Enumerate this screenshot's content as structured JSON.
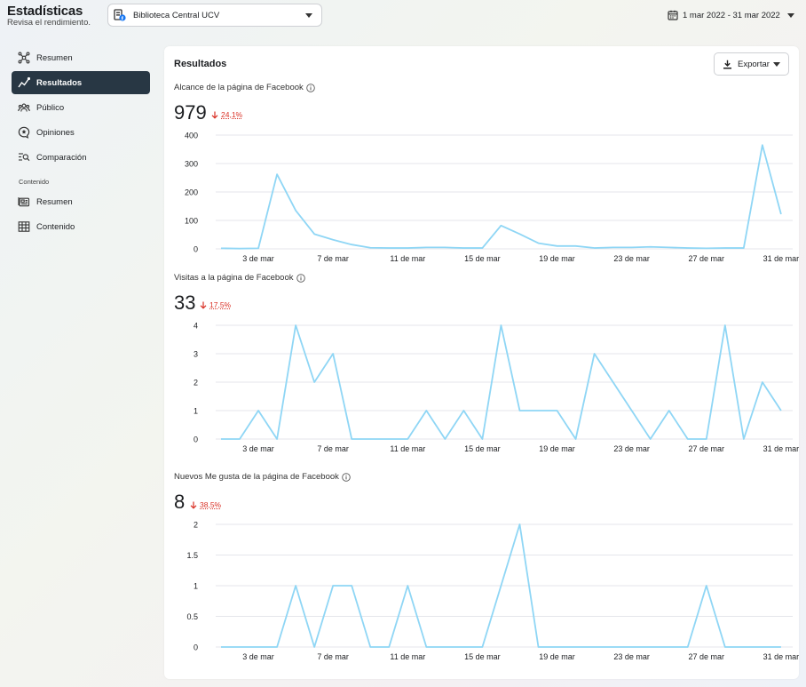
{
  "header": {
    "title": "Estadísticas",
    "subtitle": "Revisa el rendimiento.",
    "page_selector": {
      "value": "Biblioteca Central UCV",
      "icon": "facebook-page-icon"
    },
    "date_range": {
      "value": "1 mar 2022 - 31 mar 2022",
      "icon": "calendar-icon"
    }
  },
  "sidebar": {
    "items": [
      {
        "label": "Resumen",
        "icon": "overview-icon",
        "active": false
      },
      {
        "label": "Resultados",
        "icon": "results-trend-icon",
        "active": true
      },
      {
        "label": "Público",
        "icon": "audience-icon",
        "active": false
      },
      {
        "label": "Opiniones",
        "icon": "reviews-icon",
        "active": false
      },
      {
        "label": "Comparación",
        "icon": "compare-icon",
        "active": false
      }
    ],
    "content_section": {
      "label": "Contenido",
      "items": [
        {
          "label": "Resumen",
          "icon": "content-overview-icon"
        },
        {
          "label": "Contenido",
          "icon": "content-table-icon"
        }
      ]
    }
  },
  "main": {
    "title": "Resultados",
    "export_button": {
      "label": "Exportar",
      "icon": "download-icon"
    },
    "metrics": [
      {
        "title": "Alcance de la página de Facebook",
        "value": "979",
        "change": "24,1%",
        "direction": "down"
      },
      {
        "title": "Visitas a la página de Facebook",
        "value": "33",
        "change": "17,5%",
        "direction": "down"
      },
      {
        "title": "Nuevos Me gusta de la página de Facebook",
        "value": "8",
        "change": "38,5%",
        "direction": "down"
      }
    ]
  },
  "colors": {
    "line": "#8fd6f5",
    "active_nav": "#283744",
    "negative": "#d93025",
    "grid": "#e4e6eb"
  },
  "chart_data": [
    {
      "type": "line",
      "title": "Alcance de la página de Facebook",
      "x": [
        "1 mar",
        "2 mar",
        "3 mar",
        "4 mar",
        "5 mar",
        "6 mar",
        "7 mar",
        "8 mar",
        "9 mar",
        "10 mar",
        "11 mar",
        "12 mar",
        "13 mar",
        "14 mar",
        "15 mar",
        "16 mar",
        "17 mar",
        "18 mar",
        "19 mar",
        "20 mar",
        "21 mar",
        "22 mar",
        "23 mar",
        "24 mar",
        "25 mar",
        "26 mar",
        "27 mar",
        "28 mar",
        "29 mar",
        "30 mar",
        "31 mar"
      ],
      "x_tick_labels": [
        "3 de mar",
        "7 de mar",
        "11 de mar",
        "15 de mar",
        "19 de mar",
        "23 de mar",
        "27 de mar",
        "31 de mar"
      ],
      "series": [
        {
          "values": [
            2,
            1,
            2,
            262,
            135,
            52,
            32,
            15,
            4,
            3,
            3,
            5,
            5,
            3,
            3,
            82,
            52,
            20,
            10,
            10,
            3,
            5,
            5,
            7,
            5,
            3,
            2,
            3,
            3,
            365,
            122
          ]
        }
      ],
      "yticks": [
        "0",
        "100",
        "200",
        "300",
        "400"
      ],
      "ylim": [
        0,
        400
      ]
    },
    {
      "type": "line",
      "title": "Visitas a la página de Facebook",
      "x": [
        "1 mar",
        "2 mar",
        "3 mar",
        "4 mar",
        "5 mar",
        "6 mar",
        "7 mar",
        "8 mar",
        "9 mar",
        "10 mar",
        "11 mar",
        "12 mar",
        "13 mar",
        "14 mar",
        "15 mar",
        "16 mar",
        "17 mar",
        "18 mar",
        "19 mar",
        "20 mar",
        "21 mar",
        "22 mar",
        "23 mar",
        "24 mar",
        "25 mar",
        "26 mar",
        "27 mar",
        "28 mar",
        "29 mar",
        "30 mar",
        "31 mar"
      ],
      "x_tick_labels": [
        "3 de mar",
        "7 de mar",
        "11 de mar",
        "15 de mar",
        "19 de mar",
        "23 de mar",
        "27 de mar",
        "31 de mar"
      ],
      "series": [
        {
          "values": [
            0,
            0,
            1,
            0,
            4,
            2,
            3,
            0,
            0,
            0,
            0,
            1,
            0,
            1,
            0,
            4,
            1,
            1,
            1,
            0,
            3,
            2,
            1,
            0,
            1,
            0,
            0,
            4,
            0,
            2,
            1
          ]
        }
      ],
      "yticks": [
        "0",
        "1",
        "2",
        "3",
        "4"
      ],
      "ylim": [
        0,
        4
      ]
    },
    {
      "type": "line",
      "title": "Nuevos Me gusta de la página de Facebook",
      "x": [
        "1 mar",
        "2 mar",
        "3 mar",
        "4 mar",
        "5 mar",
        "6 mar",
        "7 mar",
        "8 mar",
        "9 mar",
        "10 mar",
        "11 mar",
        "12 mar",
        "13 mar",
        "14 mar",
        "15 mar",
        "16 mar",
        "17 mar",
        "18 mar",
        "19 mar",
        "20 mar",
        "21 mar",
        "22 mar",
        "23 mar",
        "24 mar",
        "25 mar",
        "26 mar",
        "27 mar",
        "28 mar",
        "29 mar",
        "30 mar",
        "31 mar"
      ],
      "x_tick_labels": [
        "3 de mar",
        "7 de mar",
        "11 de mar",
        "15 de mar",
        "19 de mar",
        "23 de mar",
        "27 de mar",
        "31 de mar"
      ],
      "series": [
        {
          "values": [
            0,
            0,
            0,
            0,
            1,
            0,
            1,
            1,
            0,
            0,
            1,
            0,
            0,
            0,
            0,
            1,
            2,
            0,
            0,
            0,
            0,
            0,
            0,
            0,
            0,
            0,
            1,
            0,
            0,
            0,
            0
          ]
        }
      ],
      "yticks": [
        "0",
        "0.5",
        "1",
        "1.5",
        "2"
      ],
      "ylim": [
        0,
        2
      ]
    }
  ]
}
